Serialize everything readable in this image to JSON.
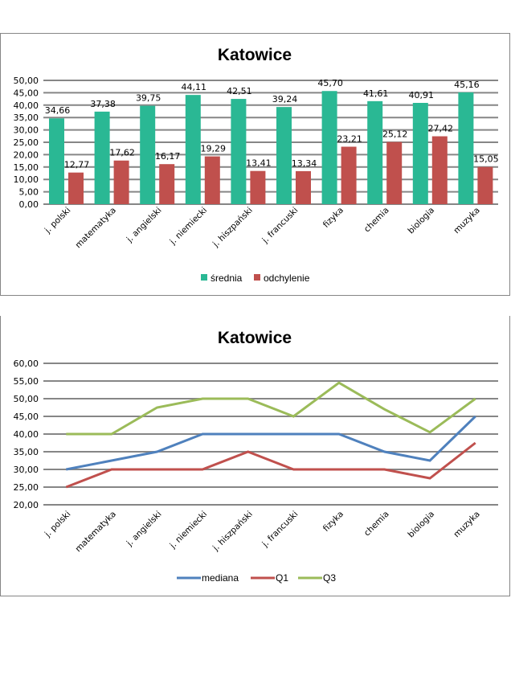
{
  "chart_data": [
    {
      "type": "bar",
      "title": "Katowice",
      "xlabel": "",
      "ylabel": "",
      "ylim": [
        0,
        50
      ],
      "ytick_step": 5,
      "yticks": [
        "0,00",
        "5,00",
        "10,00",
        "15,00",
        "20,00",
        "25,00",
        "30,00",
        "35,00",
        "40,00",
        "45,00",
        "50,00"
      ],
      "grid": true,
      "legend_position": "bottom",
      "categories": [
        "j. polski",
        "matematyka",
        "j. angielski",
        "j. niemiecki",
        "j. hiszpański",
        "j. francuski",
        "fizyka",
        "chemia",
        "biologia",
        "muzyka"
      ],
      "series": [
        {
          "name": "średnia",
          "color": "#2AB894",
          "values": [
            34.66,
            37.38,
            39.75,
            44.11,
            42.51,
            39.24,
            45.7,
            41.61,
            40.91,
            45.16
          ],
          "labels": [
            "34,66",
            "37,38",
            "39,75",
            "44,11",
            "42,51",
            "39,24",
            "45,70",
            "41,61",
            "40,91",
            "45,16"
          ]
        },
        {
          "name": "odchylenie",
          "color": "#C0504D",
          "values": [
            12.77,
            17.62,
            16.17,
            19.29,
            13.41,
            13.34,
            23.21,
            25.12,
            27.42,
            15.05
          ],
          "labels": [
            "12,77",
            "17,62",
            "16,17",
            "19,29",
            "13,41",
            "13,34",
            "23,21",
            "25,12",
            "27,42",
            "15,05"
          ]
        }
      ]
    },
    {
      "type": "line",
      "title": "Katowice",
      "xlabel": "",
      "ylabel": "",
      "ylim": [
        20,
        60
      ],
      "ytick_step": 5,
      "yticks": [
        "20,00",
        "25,00",
        "30,00",
        "35,00",
        "40,00",
        "45,00",
        "50,00",
        "55,00",
        "60,00"
      ],
      "grid": true,
      "legend_position": "bottom",
      "categories": [
        "j. polski",
        "matematyka",
        "j. angielski",
        "j. niemiecki",
        "j. hiszpański",
        "j. francuski",
        "fizyka",
        "chemia",
        "biologia",
        "muzyka"
      ],
      "series": [
        {
          "name": "mediana",
          "color": "#4F81BD",
          "values": [
            30,
            32.5,
            35,
            40,
            40,
            40,
            40,
            35,
            32.5,
            45
          ]
        },
        {
          "name": "Q1",
          "color": "#C0504D",
          "values": [
            25,
            30,
            30,
            30,
            35,
            30,
            30,
            30,
            27.5,
            37.5
          ]
        },
        {
          "name": "Q3",
          "color": "#9BBB59",
          "values": [
            40,
            40,
            47.5,
            50,
            50,
            45,
            54.5,
            47,
            40.5,
            50
          ]
        }
      ]
    }
  ]
}
